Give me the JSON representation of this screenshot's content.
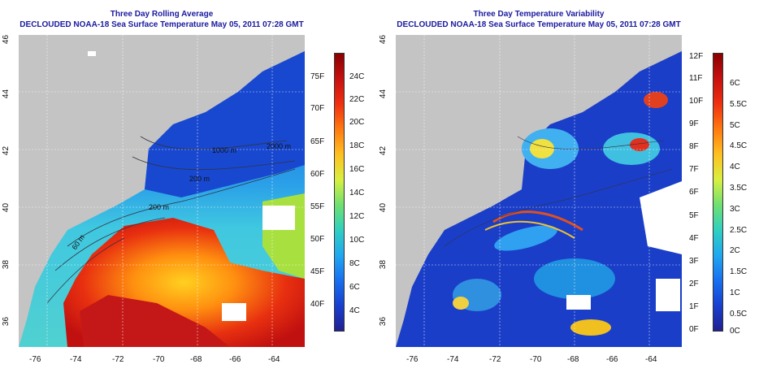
{
  "left_panel": {
    "title": "Three Day Rolling Average",
    "subtitle": "DECLOUDED NOAA-18 Sea Surface Temperature May 05, 2011 07:28 GMT",
    "contour_labels": [
      "2000 m",
      "200 m",
      "60 m",
      "1000 m",
      "200 m"
    ],
    "colorbar_f": [
      "75F",
      "70F",
      "65F",
      "60F",
      "55F",
      "50F",
      "45F",
      "40F"
    ],
    "colorbar_c": [
      "24C",
      "22C",
      "20C",
      "18C",
      "16C",
      "14C",
      "12C",
      "10C",
      "8C",
      "6C",
      "4C"
    ]
  },
  "right_panel": {
    "title": "Three Day Temperature Variability",
    "subtitle": "DECLOUDED NOAA-18 Sea Surface Temperature May 05, 2011 07:28 GMT",
    "colorbar_f": [
      "12F",
      "11F",
      "10F",
      "9F",
      "8F",
      "7F",
      "6F",
      "5F",
      "4F",
      "3F",
      "2F",
      "1F",
      "0F"
    ],
    "colorbar_c": [
      "6C",
      "5.5C",
      "5C",
      "4.5C",
      "4C",
      "3.5C",
      "3C",
      "2.5C",
      "2C",
      "1.5C",
      "1C",
      "0.5C",
      "0C"
    ]
  },
  "axes": {
    "lon_ticks": [
      "-76",
      "-74",
      "-72",
      "-70",
      "-68",
      "-66",
      "-64"
    ],
    "lat_ticks": [
      "46",
      "44",
      "42",
      "40",
      "38",
      "36"
    ]
  },
  "colors": {
    "land": "#c4c4c4",
    "title": "#1a1aa0",
    "cold": "#1040c0",
    "warm": "#d02010"
  }
}
